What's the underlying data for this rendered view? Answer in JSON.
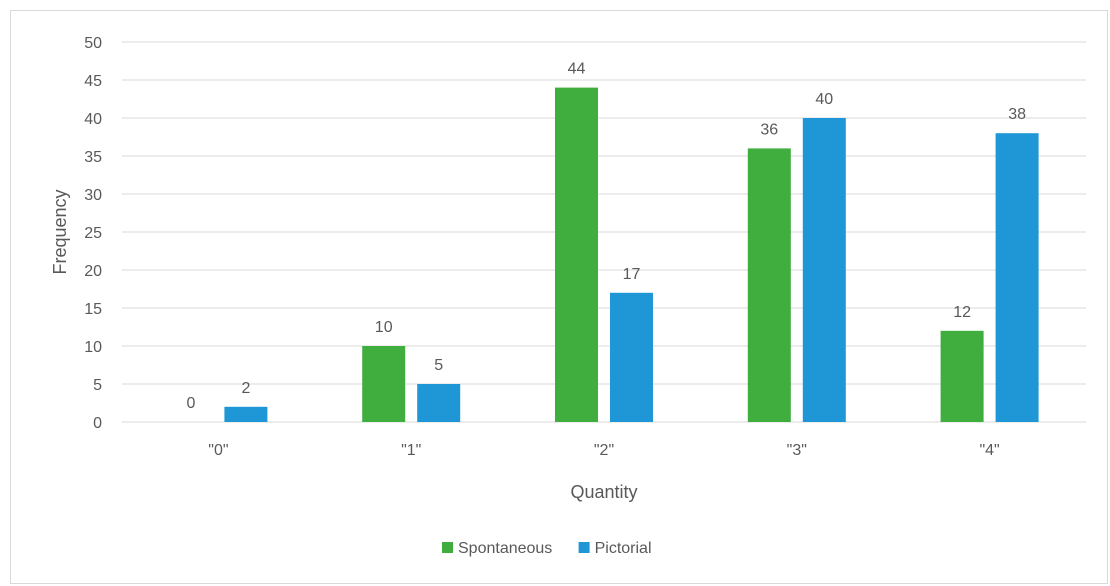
{
  "chart_data": {
    "type": "bar",
    "categories": [
      "\"0\"",
      "\"1\"",
      "\"2\"",
      "\"3\"",
      "\"4\""
    ],
    "series": [
      {
        "name": "Spontaneous",
        "values": [
          0,
          10,
          44,
          36,
          12
        ],
        "color": "#3fae3f"
      },
      {
        "name": "Pictorial",
        "values": [
          2,
          5,
          17,
          40,
          38
        ],
        "color": "#1f97d6"
      }
    ],
    "xlabel": "Quantity",
    "ylabel": "Frequency",
    "ylim": [
      0,
      50
    ],
    "yticks": [
      0,
      5,
      10,
      15,
      20,
      25,
      30,
      35,
      40,
      45,
      50
    ],
    "grid": true,
    "legend_position": "bottom",
    "gridline_color": "#d9d9d9",
    "text_color": "#595959"
  }
}
